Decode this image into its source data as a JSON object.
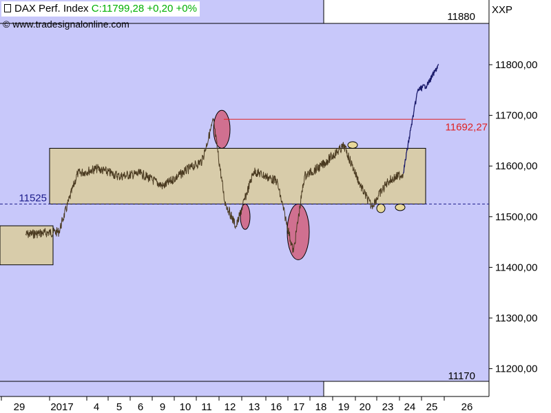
{
  "header": {
    "instrument_title": "DAX Perf. Index",
    "close_quote": "C:11799,28 +0,20 +0%",
    "copyright": "© www.tradesignalonline.com",
    "axis_symbol": "XXP",
    "top_value": "11880",
    "bottom_value": "11170"
  },
  "colors": {
    "plot_bg": "#c8c8fa",
    "band_bg": "#ffffff",
    "price_line": "#4a3a20",
    "recent_price_line": "#1a1a6a",
    "range_box_fill": "#d8ccaa",
    "pink_ellipse": "#d07090",
    "tan_ellipse": "#e8d89a",
    "resistance_line": "#e02020",
    "support_line": "#1a1a8a",
    "quote_green": "#00b000"
  },
  "chart_data": {
    "type": "line",
    "title": "DAX Perf. Index",
    "y_axis": {
      "range": [
        11180,
        11880
      ],
      "tick_values": [
        11200,
        11300,
        11400,
        11500,
        11600,
        11700,
        11800
      ],
      "tick_labels": [
        "11200,00",
        "11300,00",
        "11400,00",
        "11500,00",
        "11600,00",
        "11700,00",
        "11800,00"
      ]
    },
    "x_axis": {
      "tick_labels": [
        "29",
        "2017",
        "4",
        "5",
        "6",
        "9",
        "10",
        "11",
        "12",
        "13",
        "16",
        "17",
        "18",
        "19",
        "20",
        "23",
        "24",
        "25",
        "26"
      ]
    },
    "levels": {
      "support": {
        "value": 11525,
        "label": "11525"
      },
      "resistance": {
        "value": 11692.27,
        "label": "11692,27"
      }
    },
    "range_boxes": [
      {
        "from": "29",
        "to": "2017",
        "high": 11482,
        "low": 11405
      },
      {
        "from": "2017",
        "to": "25",
        "high": 11635,
        "low": 11525
      }
    ],
    "highlight_ellipses": [
      {
        "kind": "above",
        "at": "11",
        "high": 11710,
        "low": 11635
      },
      {
        "kind": "below",
        "at": "12",
        "high": 11525,
        "low": 11475
      },
      {
        "kind": "below",
        "at": "17",
        "high": 11525,
        "low": 11415
      },
      {
        "kind": "above",
        "at": "19",
        "high": 11648,
        "low": 11635
      },
      {
        "kind": "below",
        "at": "20",
        "high": 11525,
        "low": 11508
      },
      {
        "kind": "below",
        "at": "23",
        "high": 11525,
        "low": 11512
      }
    ],
    "series": [
      {
        "points": [
          [
            "29",
            11465
          ],
          [
            "2017",
            11470
          ],
          [
            "2017",
            11585
          ],
          [
            "4",
            11595
          ],
          [
            "5",
            11580
          ],
          [
            "6",
            11585
          ],
          [
            "9",
            11560
          ],
          [
            "10",
            11590
          ],
          [
            "11",
            11610
          ],
          [
            "11",
            11690
          ],
          [
            "12",
            11530
          ],
          [
            "12",
            11480
          ],
          [
            "13",
            11590
          ],
          [
            "16",
            11570
          ],
          [
            "17",
            11430
          ],
          [
            "17",
            11580
          ],
          [
            "18",
            11600
          ],
          [
            "19",
            11640
          ],
          [
            "20",
            11560
          ],
          [
            "20",
            11520
          ],
          [
            "23",
            11570
          ],
          [
            "24",
            11585
          ],
          [
            "24",
            11670
          ],
          [
            "24",
            11750
          ],
          [
            "25",
            11760
          ],
          [
            "25",
            11799.28
          ]
        ]
      }
    ]
  }
}
